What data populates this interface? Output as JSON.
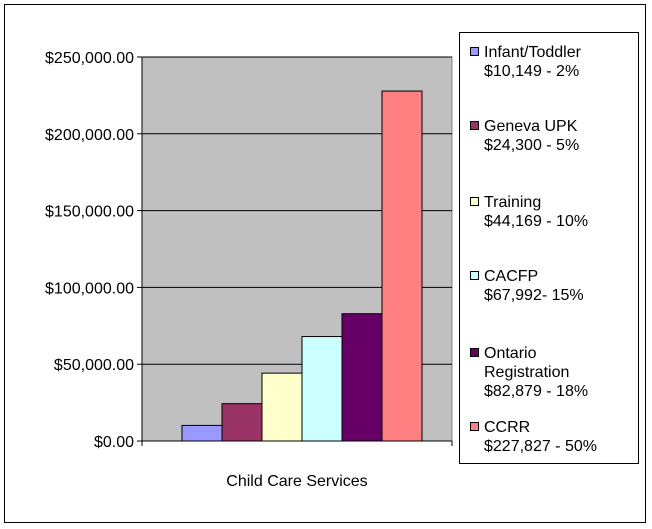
{
  "chart_data": {
    "type": "bar",
    "categories": [
      "Child Care Services"
    ],
    "series": [
      {
        "name": "Infant/Toddler",
        "legend_lines": [
          "Infant/Toddler",
          "$10,149 - 2%"
        ],
        "value": 10149,
        "color": "#9999FF"
      },
      {
        "name": "Geneva UPK",
        "legend_lines": [
          "Geneva UPK",
          "$24,300 - 5%"
        ],
        "value": 24300,
        "color": "#993366"
      },
      {
        "name": "Training",
        "legend_lines": [
          "Training",
          "$44,169 - 10%"
        ],
        "value": 44169,
        "color": "#FFFFCC"
      },
      {
        "name": "CACFP",
        "legend_lines": [
          "CACFP",
          "$67,992- 15%"
        ],
        "value": 67992,
        "color": "#CCFFFF"
      },
      {
        "name": "Ontario Registration",
        "legend_lines": [
          "Ontario",
          "Registration",
          "$82,879 - 18%"
        ],
        "value": 82879,
        "color": "#660066"
      },
      {
        "name": "CCRR",
        "legend_lines": [
          "CCRR",
          "$227,827 - 50%"
        ],
        "value": 227827,
        "color": "#FF8080"
      }
    ],
    "y_ticks": [
      "$0.00",
      "$50,000.00",
      "$100,000.00",
      "$150,000.00",
      "$200,000.00",
      "$250,000.00"
    ],
    "y_tick_values": [
      0,
      50000,
      100000,
      150000,
      200000,
      250000
    ],
    "ylim": [
      0,
      250000
    ],
    "grid": true,
    "plot_background": "#C0C0C0",
    "legend_position": "right"
  }
}
